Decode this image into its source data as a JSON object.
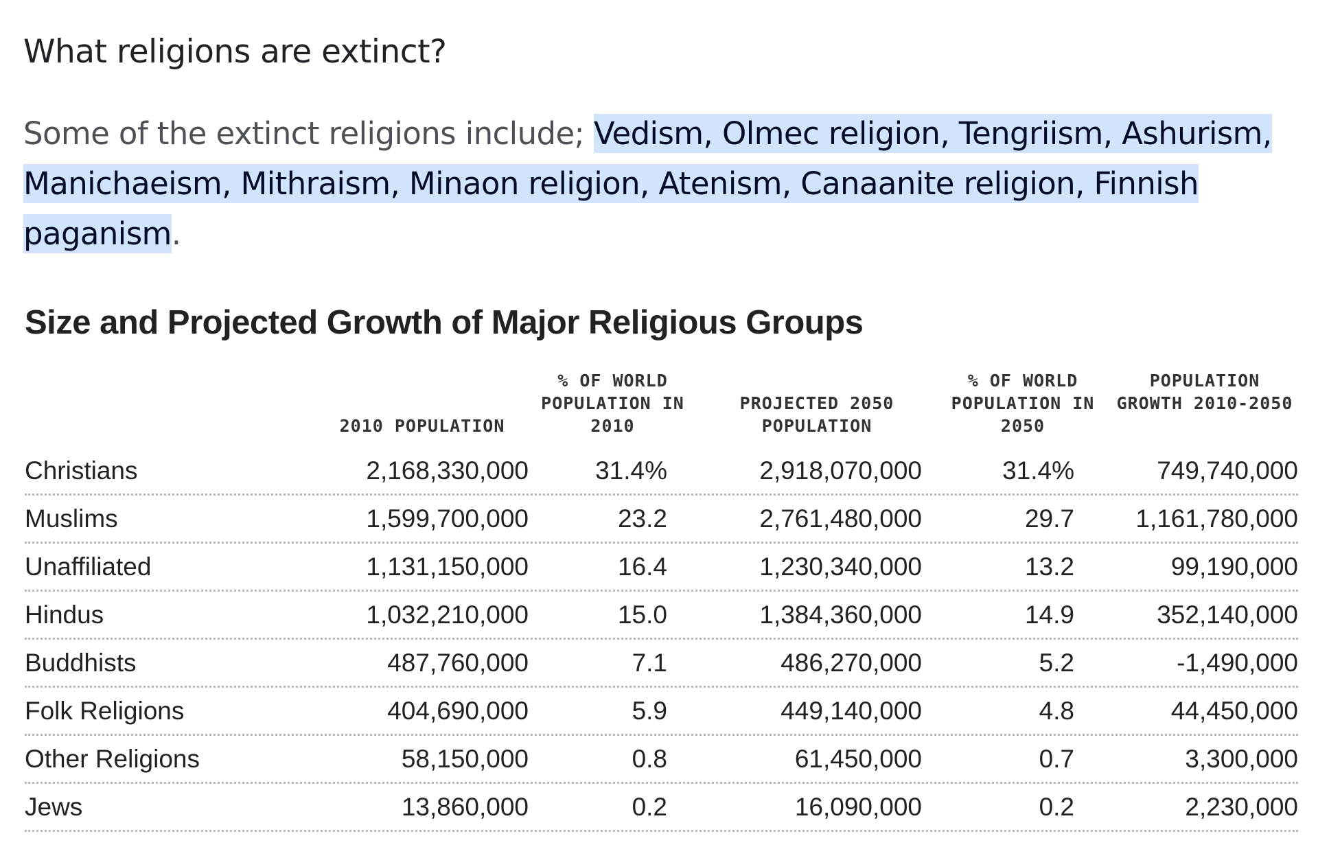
{
  "question": "What religions are extinct?",
  "answer": {
    "prefix": "Some of the extinct religions include; ",
    "highlight": "Vedism, Olmec religion, Tengriism, Ashurism, Manichaeism, Mithraism, Minaon religion, Atenism, Canaanite religion, Finnish paganism",
    "suffix": "."
  },
  "table": {
    "title": "Size and Projected Growth of Major Religious Groups",
    "headers": [
      "",
      "2010 POPULATION",
      "% OF WORLD POPULATION IN 2010",
      "PROJECTED 2050 POPULATION",
      "% OF WORLD POPULATION IN 2050",
      "POPULATION GROWTH 2010-2050"
    ],
    "rows": [
      [
        "Christians",
        "2,168,330,000",
        "31.4%",
        "2,918,070,000",
        "31.4%",
        "749,740,000"
      ],
      [
        "Muslims",
        "1,599,700,000",
        "23.2",
        "2,761,480,000",
        "29.7",
        "1,161,780,000"
      ],
      [
        "Unaffiliated",
        "1,131,150,000",
        "16.4",
        "1,230,340,000",
        "13.2",
        "99,190,000"
      ],
      [
        "Hindus",
        "1,032,210,000",
        "15.0",
        "1,384,360,000",
        "14.9",
        "352,140,000"
      ],
      [
        "Buddhists",
        "487,760,000",
        "7.1",
        "486,270,000",
        "5.2",
        "-1,490,000"
      ],
      [
        "Folk Religions",
        "404,690,000",
        "5.9",
        "449,140,000",
        "4.8",
        "44,450,000"
      ],
      [
        "Other Religions",
        "58,150,000",
        "0.8",
        "61,450,000",
        "0.7",
        "3,300,000"
      ],
      [
        "Jews",
        "13,860,000",
        "0.2",
        "16,090,000",
        "0.2",
        "2,230,000"
      ]
    ]
  },
  "colors": {
    "highlight_bg": "#d2e3fc",
    "highlight_text": "#040c28",
    "body_text": "#4d5156"
  }
}
